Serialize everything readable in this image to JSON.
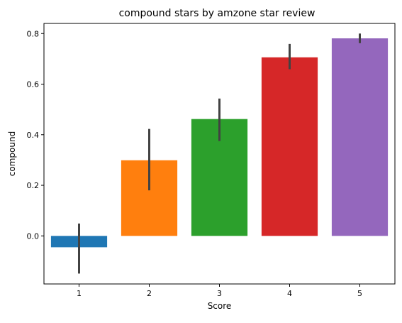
{
  "chart_data": {
    "type": "bar",
    "title": "compound stars by amzone star review",
    "xlabel": "Score",
    "ylabel": "compound",
    "categories": [
      "1",
      "2",
      "3",
      "4",
      "5"
    ],
    "values": [
      -0.045,
      0.299,
      0.462,
      0.706,
      0.781
    ],
    "error_low": [
      -0.149,
      0.18,
      0.375,
      0.659,
      0.762
    ],
    "error_high": [
      0.049,
      0.423,
      0.543,
      0.759,
      0.8
    ],
    "colors": [
      "#1f77b4",
      "#ff7f0e",
      "#2ca02c",
      "#d62728",
      "#9467bd"
    ],
    "ylim": [
      -0.19,
      0.84
    ],
    "yticks": [
      0.0,
      0.2,
      0.4,
      0.6,
      0.8
    ],
    "ytick_labels": [
      "0.0",
      "0.2",
      "0.4",
      "0.6",
      "0.8"
    ],
    "grid": false,
    "legend": "none"
  }
}
